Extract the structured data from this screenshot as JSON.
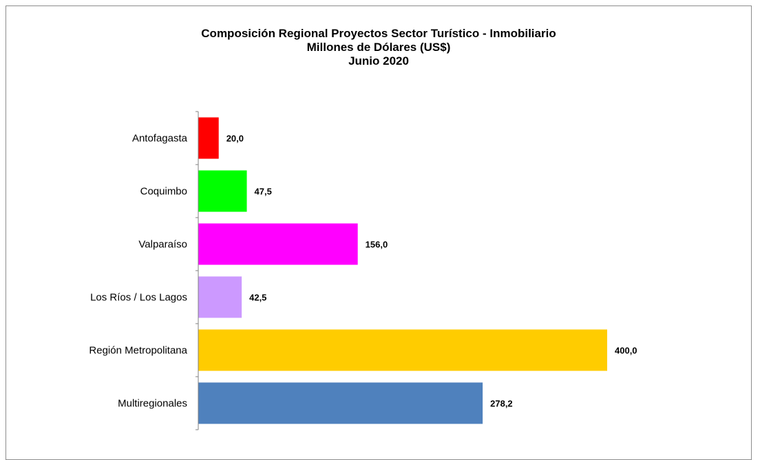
{
  "chart_data": {
    "type": "bar",
    "orientation": "horizontal",
    "title": "Composición Regional Proyectos Sector Turístico - Inmobiliario",
    "subtitle_lines": [
      "Millones de Dólares (US$)",
      "Junio 2020"
    ],
    "categories": [
      "Antofagasta",
      "Coquimbo",
      "Valparaíso",
      "Los  Ríos / Los Lagos",
      "Región Metropolitana",
      "Multiregionales"
    ],
    "values": [
      20.0,
      47.5,
      156.0,
      42.5,
      400.0,
      278.2
    ],
    "value_labels": [
      "20,0",
      "47,5",
      "156,0",
      "42,5",
      "400,0",
      "278,2"
    ],
    "colors": [
      "#ff0000",
      "#00ff00",
      "#ff00ff",
      "#cc99ff",
      "#ffcc00",
      "#4f81bd"
    ],
    "xlim": [
      0,
      400
    ],
    "grid": false,
    "legend": "none"
  }
}
